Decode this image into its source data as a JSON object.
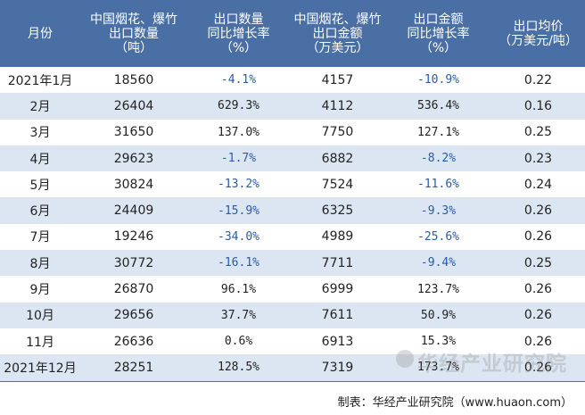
{
  "headers": [
    "月份",
    "中国烟花、爆竹\n出口数量\n（吨）",
    "出口数量\n同比增长率\n（%）",
    "中国烟花、爆竹\n出口金额\n（万美元）",
    "出口金额\n同比增长率\n（%）",
    "出口均价\n（万美元/吨）"
  ],
  "rows": [
    {
      "month": "2021年1月",
      "qty": "18560",
      "qty_growth": "-4.1%",
      "amount": "4157",
      "amount_growth": "-10.9%",
      "price": "0.22"
    },
    {
      "month": "2月",
      "qty": "26404",
      "qty_growth": "629.3%",
      "amount": "4112",
      "amount_growth": "536.4%",
      "price": "0.16"
    },
    {
      "month": "3月",
      "qty": "31650",
      "qty_growth": "137.0%",
      "amount": "7750",
      "amount_growth": "127.1%",
      "price": "0.25"
    },
    {
      "month": "4月",
      "qty": "29623",
      "qty_growth": "-1.7%",
      "amount": "6882",
      "amount_growth": "-8.2%",
      "price": "0.23"
    },
    {
      "month": "5月",
      "qty": "30824",
      "qty_growth": "-13.2%",
      "amount": "7524",
      "amount_growth": "-11.6%",
      "price": "0.24"
    },
    {
      "month": "6月",
      "qty": "24409",
      "qty_growth": "-15.9%",
      "amount": "6325",
      "amount_growth": "-9.3%",
      "price": "0.26"
    },
    {
      "month": "7月",
      "qty": "19246",
      "qty_growth": "-34.0%",
      "amount": "4989",
      "amount_growth": "-25.6%",
      "price": "0.26"
    },
    {
      "month": "8月",
      "qty": "30772",
      "qty_growth": "-16.1%",
      "amount": "7711",
      "amount_growth": "-9.4%",
      "price": "0.25"
    },
    {
      "month": "9月",
      "qty": "26870",
      "qty_growth": "96.1%",
      "amount": "6999",
      "amount_growth": "123.7%",
      "price": "0.26"
    },
    {
      "month": "10月",
      "qty": "29656",
      "qty_growth": "37.7%",
      "amount": "7611",
      "amount_growth": "50.9%",
      "price": "0.26"
    },
    {
      "month": "11月",
      "qty": "26636",
      "qty_growth": "0.6%",
      "amount": "6913",
      "amount_growth": "15.3%",
      "price": "0.26"
    },
    {
      "month": "2021年12月",
      "qty": "28251",
      "qty_growth": "128.5%",
      "amount": "7319",
      "amount_growth": "173.7%",
      "price": "0.26"
    }
  ],
  "footer": "制表：华经产业研究院（www.huaon.com）",
  "watermark": "华经产业研究院",
  "colors": {
    "header_bg": "#4a6fa5",
    "alt_row": "#dce6f2",
    "negative_text": "#2b5aa8"
  }
}
